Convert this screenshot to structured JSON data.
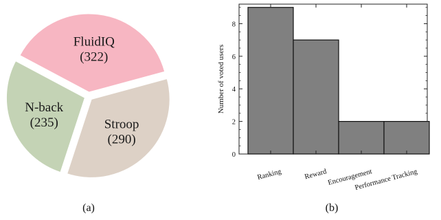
{
  "chart_data": [
    {
      "type": "pie",
      "title": "",
      "slices": [
        {
          "label": "FluidIQ",
          "value": 322,
          "value_text": "(322)",
          "color": "#f7b6c2"
        },
        {
          "label": "Stroop",
          "value": 290,
          "value_text": "(290)",
          "color": "#ddd1c6"
        },
        {
          "label": "N-back",
          "value": 235,
          "value_text": "(235)",
          "color": "#c4d3b5"
        }
      ],
      "exploded": true,
      "caption": "(a)"
    },
    {
      "type": "bar",
      "title": "",
      "categories": [
        "Ranking",
        "Reward",
        "Encouragement",
        "Performance Tracking"
      ],
      "values": [
        9,
        7,
        2,
        2
      ],
      "xlabel": "",
      "ylabel": "Number of voted users",
      "ylim": [
        0,
        9.2
      ],
      "yticks": [
        0,
        2,
        4,
        6,
        8
      ],
      "bar_color": "#808080",
      "grid": false,
      "caption": "(b)"
    }
  ]
}
